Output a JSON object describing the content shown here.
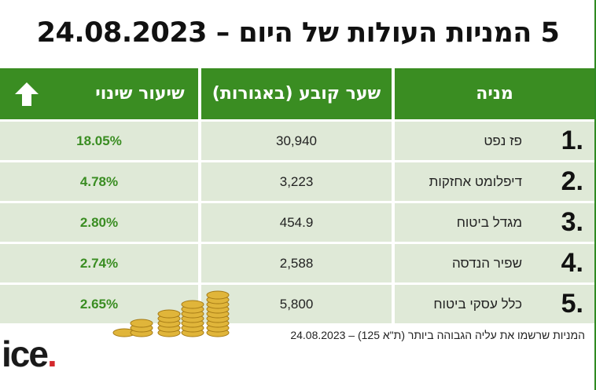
{
  "title": "5 המניות העולות של היום – 24.08.2023",
  "header": {
    "stock": "מניה",
    "price": "שער קובע (באגורות)",
    "change": "שיעור שינוי"
  },
  "rows": [
    {
      "rank": "1.",
      "name": "פז נפט",
      "price": "30,940",
      "change": "18.05%"
    },
    {
      "rank": "2.",
      "name": "דיפלומט אחזקות",
      "price": "3,223",
      "change": "4.78%"
    },
    {
      "rank": "3.",
      "name": "מגדל ביטוח",
      "price": "454.9",
      "change": "2.80%"
    },
    {
      "rank": "4.",
      "name": "שפיר הנדסה",
      "price": "2,588",
      "change": "2.74%"
    },
    {
      "rank": "5.",
      "name": "כלל עסקי ביטוח",
      "price": "5,800",
      "change": "2.65%"
    }
  ],
  "footnote": "המניות שרשמו את עליה הגבוהה ביותר (ת\"א 125) – 24.08.2023",
  "logo": {
    "text": "ice",
    "dot": "."
  },
  "colors": {
    "accent": "#3a8d22",
    "row_bg": "#dfe9d7",
    "logo_dot": "#d4282c"
  },
  "icons": {
    "up_arrow": "up-arrow-icon",
    "coins": "coin-stacks-illustration"
  }
}
